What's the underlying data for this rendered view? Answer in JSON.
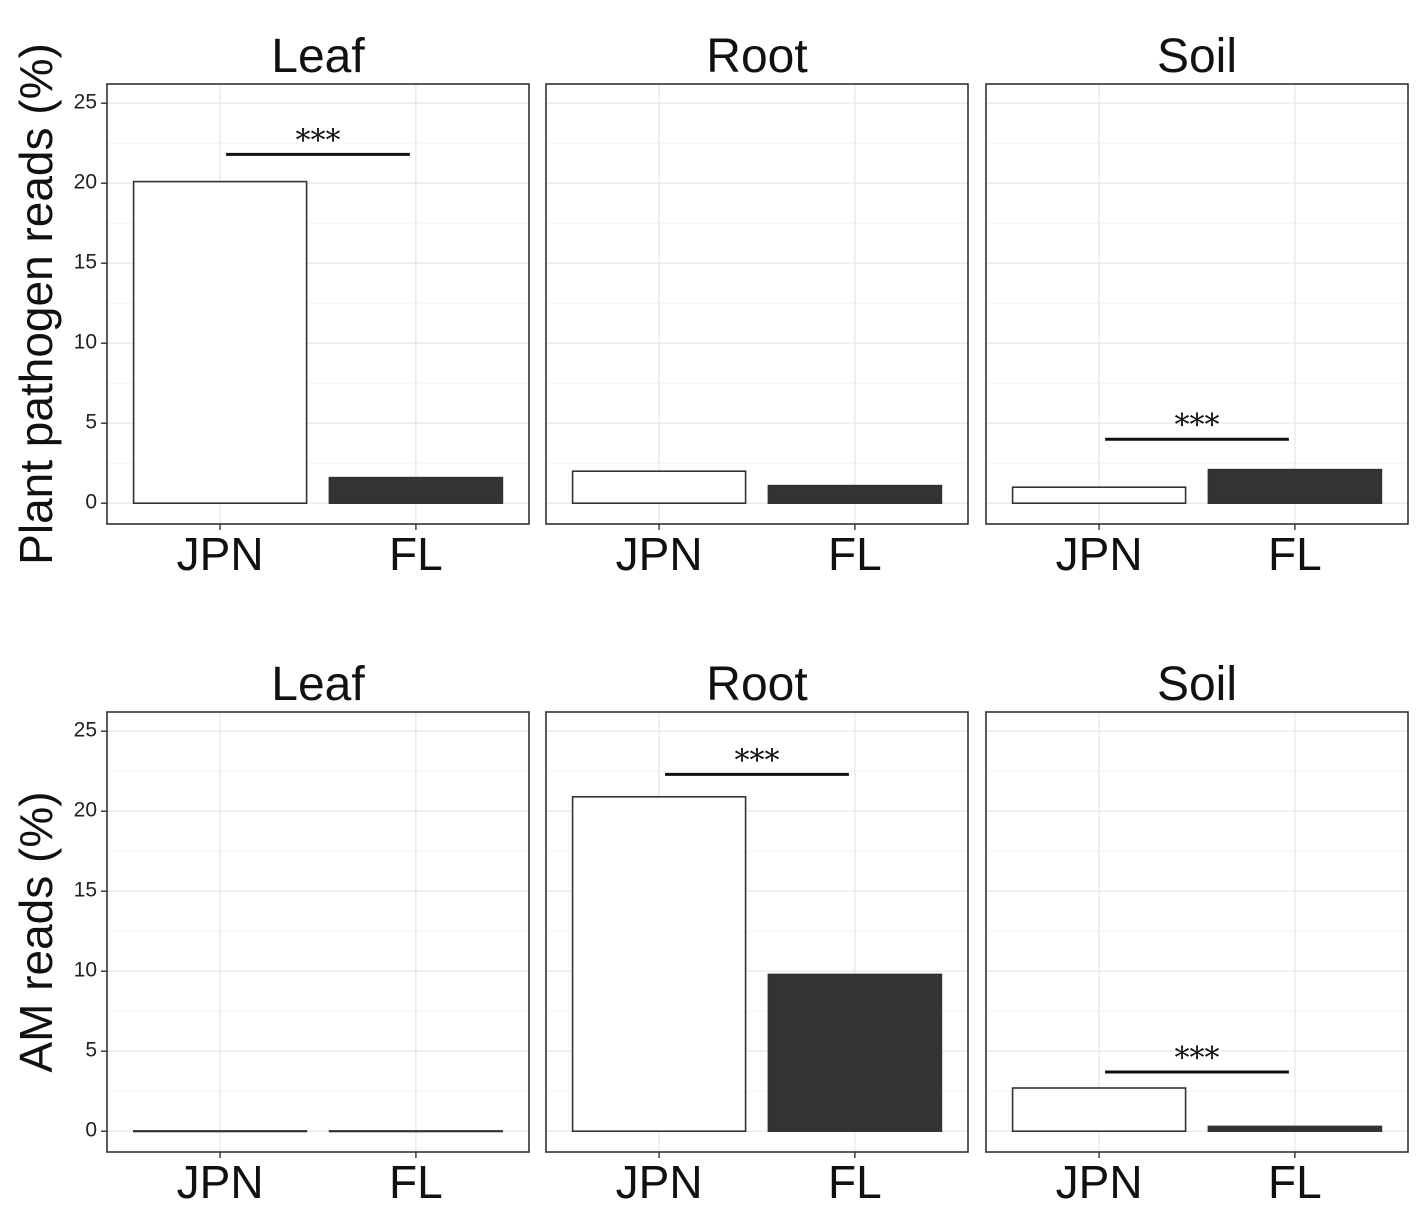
{
  "chart_data": [
    {
      "type": "bar",
      "row": 0,
      "ylabel": "Plant pathogen reads (%)",
      "ylim": [
        -1.3,
        26.2
      ],
      "yticks": [
        0,
        5,
        10,
        15,
        20,
        25
      ],
      "yticklabels": [
        "0",
        "5",
        "10",
        "15",
        "20",
        "25"
      ],
      "panels": [
        {
          "title": "Leaf",
          "categories": [
            "JPN",
            "FL"
          ],
          "values": [
            20.1,
            1.6
          ],
          "colors": [
            "#ffffff",
            "#333333"
          ],
          "significance": "***",
          "sig_y": 21.8
        },
        {
          "title": "Root",
          "categories": [
            "JPN",
            "FL"
          ],
          "values": [
            2.0,
            1.1
          ],
          "colors": [
            "#ffffff",
            "#333333"
          ],
          "significance": "",
          "sig_y": null
        },
        {
          "title": "Soil",
          "categories": [
            "JPN",
            "FL"
          ],
          "values": [
            1.0,
            2.1
          ],
          "colors": [
            "#ffffff",
            "#333333"
          ],
          "significance": "***",
          "sig_y": 4.0
        }
      ]
    },
    {
      "type": "bar",
      "row": 1,
      "ylabel": "AM reads (%)",
      "ylim": [
        -1.3,
        26.2
      ],
      "yticks": [
        0,
        5,
        10,
        15,
        20,
        25
      ],
      "yticklabels": [
        "0",
        "5",
        "10",
        "15",
        "20",
        "25"
      ],
      "panels": [
        {
          "title": "Leaf",
          "categories": [
            "JPN",
            "FL"
          ],
          "values": [
            0.0,
            0.0
          ],
          "colors": [
            "#ffffff",
            "#333333"
          ],
          "significance": "",
          "sig_y": null
        },
        {
          "title": "Root",
          "categories": [
            "JPN",
            "FL"
          ],
          "values": [
            20.9,
            9.8
          ],
          "colors": [
            "#ffffff",
            "#333333"
          ],
          "significance": "***",
          "sig_y": 22.3
        },
        {
          "title": "Soil",
          "categories": [
            "JPN",
            "FL"
          ],
          "values": [
            2.7,
            0.3
          ],
          "colors": [
            "#ffffff",
            "#333333"
          ],
          "significance": "***",
          "sig_y": 3.7
        }
      ]
    }
  ]
}
